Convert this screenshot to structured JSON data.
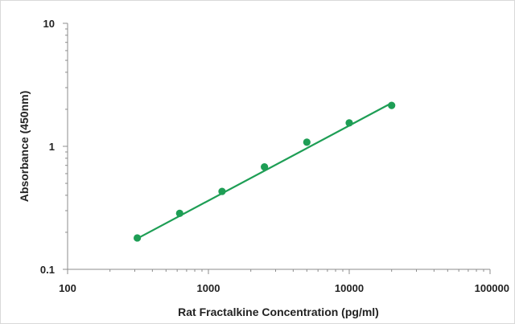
{
  "chart_data": {
    "type": "scatter",
    "title": "",
    "xlabel": "Rat Fractalkine Concentration (pg/ml)",
    "ylabel": "Absorbance (450nm)",
    "x_scale": "log",
    "y_scale": "log",
    "xlim": [
      100,
      100000
    ],
    "ylim": [
      0.1,
      10
    ],
    "x_ticks": [
      100,
      1000,
      10000,
      100000
    ],
    "x_tick_labels": [
      "100",
      "1000",
      "10000",
      "100000"
    ],
    "y_ticks": [
      0.1,
      1,
      10
    ],
    "y_tick_labels": [
      "0.1",
      "1",
      "10"
    ],
    "grid": false,
    "legend": "none",
    "series": [
      {
        "x": [
          312.5,
          625,
          1250,
          2500,
          5000,
          10000,
          20000
        ],
        "y": [
          0.18,
          0.285,
          0.43,
          0.68,
          1.08,
          1.55,
          2.15
        ],
        "color": "#1e9e55",
        "marker": "circle",
        "trendline": {
          "type": "power",
          "x_range": [
            312.5,
            20000
          ],
          "y_range": [
            0.178,
            2.25
          ]
        }
      }
    ]
  }
}
